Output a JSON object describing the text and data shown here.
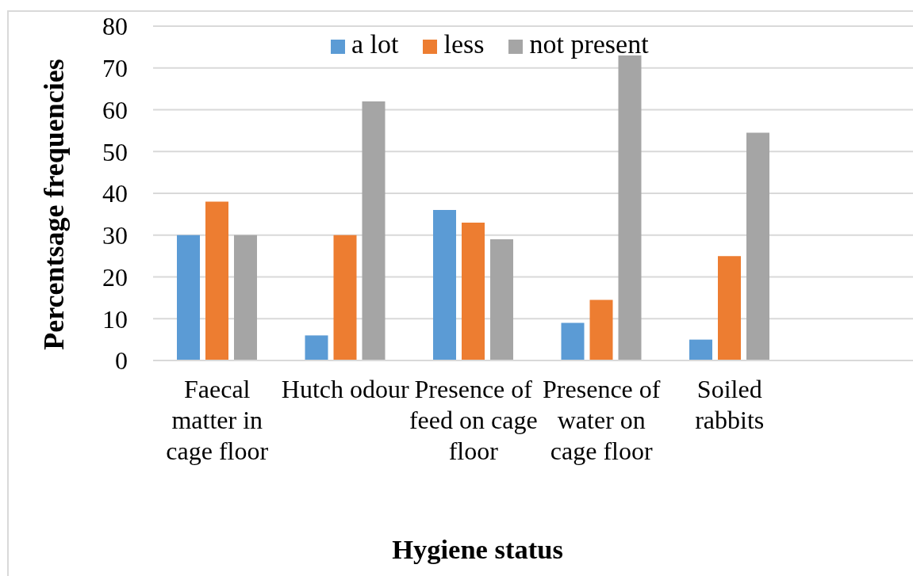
{
  "chart_data": {
    "type": "bar",
    "xlabel": "Hygiene status",
    "ylabel": "Percentsage frequencies",
    "categories": [
      "Faecal matter in cage floor",
      "Hutch odour",
      "Presence of feed on cage floor",
      "Presence of water on cage floor",
      "Soiled rabbits",
      null
    ],
    "series": [
      {
        "name": "a lot",
        "color": "#5b9bd5",
        "values": [
          30,
          6,
          36,
          9,
          5,
          null
        ]
      },
      {
        "name": "less",
        "color": "#ed7d31",
        "values": [
          38,
          30,
          33,
          14.5,
          25,
          null
        ]
      },
      {
        "name": "not present",
        "color": "#a5a5a5",
        "values": [
          30,
          62,
          29,
          73,
          54.5,
          null
        ]
      }
    ],
    "ylim": [
      0,
      80
    ],
    "yticks": [
      0,
      10,
      20,
      30,
      40,
      50,
      60,
      70,
      80
    ],
    "grid": "y",
    "legend": "top"
  }
}
